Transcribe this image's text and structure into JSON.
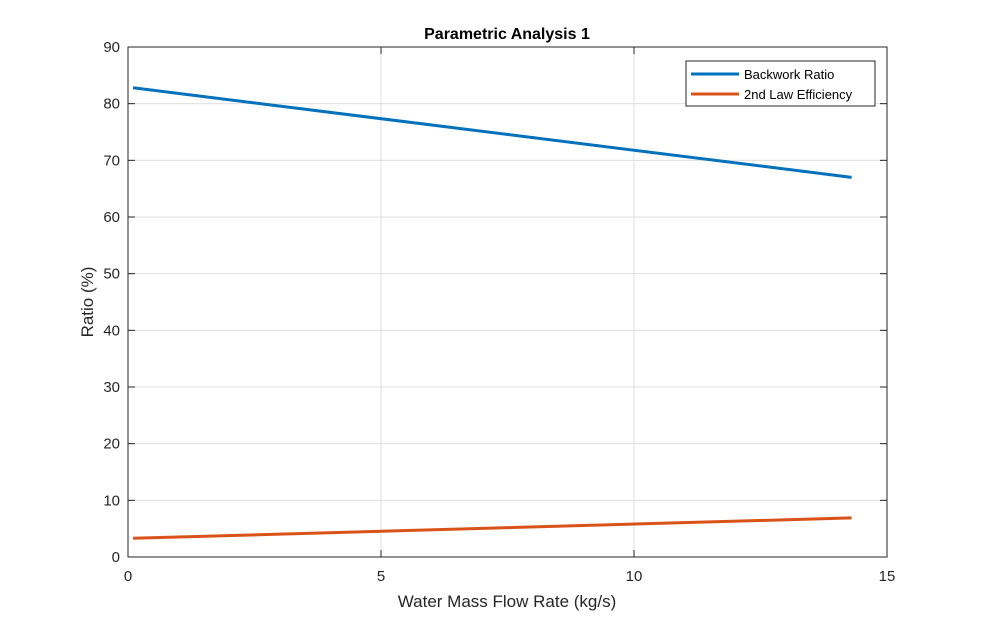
{
  "chart_data": {
    "type": "line",
    "title": "Parametric Analysis 1",
    "xlabel": "Water Mass Flow Rate (kg/s)",
    "ylabel": "Ratio (%)",
    "xlim": [
      0,
      15
    ],
    "ylim": [
      0,
      90
    ],
    "xticks": [
      0,
      5,
      10,
      15
    ],
    "yticks": [
      0,
      10,
      20,
      30,
      40,
      50,
      60,
      70,
      80,
      90
    ],
    "grid": true,
    "legend_position": "top-right",
    "series": [
      {
        "name": "Backwork Ratio",
        "color": "#0072BD",
        "x": [
          0.1,
          14.3
        ],
        "y": [
          82.8,
          67.0
        ]
      },
      {
        "name": "2nd Law Efficiency",
        "color": "#D95319",
        "x": [
          0.1,
          14.3
        ],
        "y": [
          3.3,
          6.9
        ]
      }
    ]
  }
}
